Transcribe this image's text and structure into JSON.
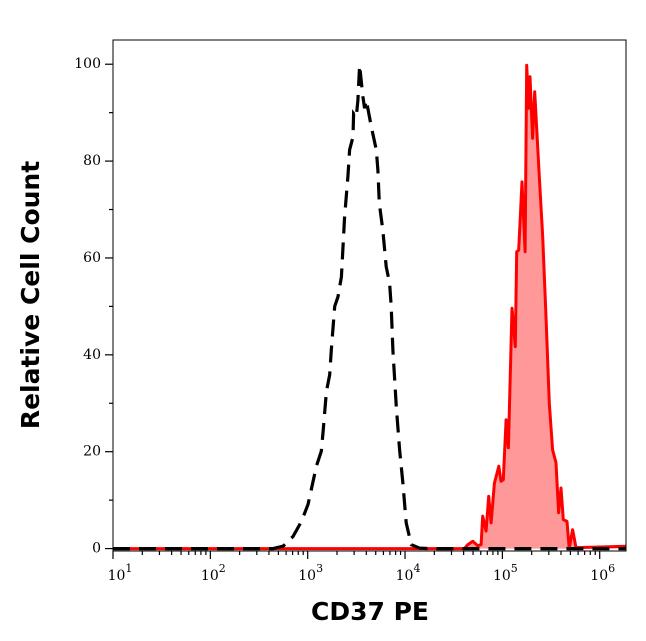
{
  "chart_data": {
    "type": "area",
    "xlabel": "CD37 PE",
    "ylabel": "Relative Cell Count",
    "xscale": "log",
    "xlim_log10": [
      1.0,
      6.27
    ],
    "ylim": [
      -0.5,
      105
    ],
    "x_ticks": [
      {
        "base": "10",
        "exp": "1",
        "log": 1
      },
      {
        "base": "10",
        "exp": "2",
        "log": 2
      },
      {
        "base": "10",
        "exp": "3",
        "log": 3
      },
      {
        "base": "10",
        "exp": "4",
        "log": 4
      },
      {
        "base": "10",
        "exp": "5",
        "log": 5
      },
      {
        "base": "10",
        "exp": "6",
        "log": 6
      }
    ],
    "y_ticks": [
      "0",
      "20",
      "40",
      "60",
      "80",
      "100"
    ],
    "grid": false,
    "series": [
      {
        "style": "dashed-line",
        "color": "#000000",
        "log10_x": [
          1.0,
          2.644,
          2.747,
          2.849,
          2.935,
          3.003,
          3.089,
          3.14,
          3.157,
          3.192,
          3.226,
          3.243,
          3.277,
          3.311,
          3.346,
          3.379,
          3.413,
          3.431,
          3.465,
          3.472,
          3.499,
          3.516,
          3.533,
          3.567,
          3.585,
          3.602,
          3.653,
          3.705,
          3.721,
          3.736,
          3.772,
          3.807,
          3.841,
          3.858,
          3.875,
          3.91,
          3.944,
          3.978,
          4.012,
          4.064,
          4.149,
          4.251,
          6.27
        ],
        "y": [
          0,
          0,
          0.5,
          2.5,
          5.6,
          9.1,
          17,
          20.1,
          23.9,
          32.4,
          35.9,
          41,
          50,
          52,
          56.1,
          68.5,
          76.8,
          82.3,
          85,
          89.8,
          89.1,
          92.6,
          99.8,
          93.3,
          90.9,
          92.6,
          87.1,
          82.3,
          78.1,
          71.3,
          65.8,
          58.2,
          54.8,
          50,
          41,
          29.3,
          20.4,
          13.5,
          5.3,
          0.8,
          0.1,
          0,
          0
        ]
      },
      {
        "style": "filled",
        "color": "#ff0000",
        "fill": "#ff9999",
        "log10_x": [
          1.0,
          4.354,
          4.61,
          4.644,
          4.696,
          4.747,
          4.781,
          4.798,
          4.833,
          4.86,
          4.884,
          4.918,
          4.963,
          4.986,
          5.01,
          5.038,
          5.062,
          5.099,
          5.133,
          5.147,
          5.168,
          5.202,
          5.233,
          5.25,
          5.27,
          5.284,
          5.311,
          5.332,
          5.352,
          5.379,
          5.414,
          5.448,
          5.482,
          5.516,
          5.551,
          5.578,
          5.602,
          5.626,
          5.664,
          5.687,
          5.721,
          5.756,
          5.961,
          6.27
        ],
        "y": [
          0,
          0,
          0,
          0.8,
          1.5,
          0.6,
          0.8,
          6.7,
          3.6,
          10.8,
          5.3,
          13.5,
          17,
          13.9,
          14.2,
          26.6,
          20.8,
          49.6,
          41.7,
          61.3,
          61.6,
          75.7,
          61.3,
          99.8,
          90.9,
          97.4,
          84.7,
          94.3,
          87.1,
          76.8,
          64.4,
          47.9,
          30,
          20.4,
          17.7,
          7.4,
          12.5,
          6,
          5.6,
          0,
          3.9,
          0.2,
          0.3,
          0.5
        ]
      }
    ]
  }
}
